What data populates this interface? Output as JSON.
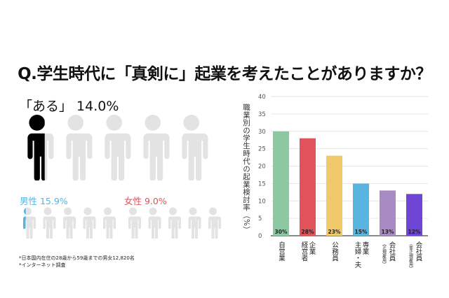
{
  "title": "Q.学生時代に「真剣に」起業を考えたことがありますか？",
  "overall": {
    "label": "「ある」 14.0%",
    "value": 14.0,
    "color": "#000000",
    "per_figure": 20,
    "figures": 5
  },
  "male": {
    "label": "男性 15.9%",
    "value": 15.9,
    "color": "#5ab4e0",
    "per_figure": 20,
    "figures": 5
  },
  "female": {
    "label": "女性 9.0%",
    "value": 9.0,
    "color": "#e0535a",
    "per_figure": 20,
    "figures": 5
  },
  "notes": [
    "*日本国内在住の28歳から59歳までの男女12,820名",
    "*インターネット調査"
  ],
  "chart_data": {
    "type": "bar",
    "ylabel": "職業別の学生時代の起業検討率（%）",
    "ylim": [
      0,
      40
    ],
    "yticks": [
      "0",
      "5",
      "10",
      "15",
      "20",
      "25",
      "30",
      "35",
      "40"
    ],
    "grid": true,
    "categories": [
      "自営業",
      "企業経営者",
      "公務員",
      "専業主婦・夫",
      "会社員（正規雇用）",
      "会社員（非正規雇用）"
    ],
    "category_lines": [
      [
        "自営業"
      ],
      [
        "企業",
        "経営者"
      ],
      [
        "公務員"
      ],
      [
        "専業",
        "主婦・夫"
      ],
      [
        "会社員",
        "（正規雇用）"
      ],
      [
        "会社員",
        "（非正規雇用）"
      ]
    ],
    "values": [
      30,
      28,
      23,
      15,
      13,
      12
    ],
    "data_labels": [
      "30%",
      "28%",
      "23%",
      "15%",
      "13%",
      "12%"
    ],
    "colors": [
      "#8cc9a3",
      "#e0535a",
      "#f0c96a",
      "#5ab4e0",
      "#a98bc4",
      "#6f45d6"
    ]
  }
}
